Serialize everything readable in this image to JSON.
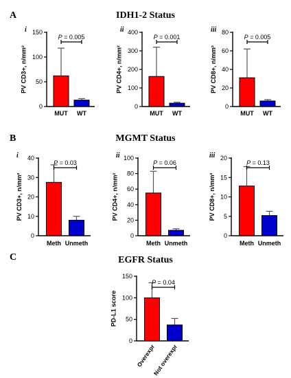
{
  "figure": {
    "sections": [
      {
        "letter": "A",
        "title": "IDH1-2 Status"
      },
      {
        "letter": "B",
        "title": "MGMT Status"
      },
      {
        "letter": "C",
        "title": "EGFR Status"
      }
    ]
  },
  "chart_data": [
    {
      "type": "bar",
      "section": "A",
      "panel_label": "i",
      "categories": [
        "MUT",
        "WT"
      ],
      "values": [
        62,
        13
      ],
      "errors": [
        56,
        3
      ],
      "ylabel": "PV CD3+, n/mm²",
      "ylim": [
        0,
        150
      ],
      "yticks": [
        0,
        50,
        100,
        150
      ],
      "bar_colors": [
        "#ff0000",
        "#0000cc"
      ],
      "pvalue": "P = 0.005"
    },
    {
      "type": "bar",
      "section": "A",
      "panel_label": "ii",
      "categories": [
        "MUT",
        "WT"
      ],
      "values": [
        162,
        18
      ],
      "errors": [
        158,
        5
      ],
      "ylabel": "PV CD4+, n/mm²",
      "ylim": [
        0,
        400
      ],
      "yticks": [
        0,
        100,
        200,
        300,
        400
      ],
      "bar_colors": [
        "#ff0000",
        "#0000cc"
      ],
      "pvalue": "P = 0.001"
    },
    {
      "type": "bar",
      "section": "A",
      "panel_label": "iii",
      "categories": [
        "MUT",
        "WT"
      ],
      "values": [
        31,
        6
      ],
      "errors": [
        31,
        1.5
      ],
      "ylabel": "PV CD8+, n/mm²",
      "ylim": [
        0,
        80
      ],
      "yticks": [
        0,
        20,
        40,
        60,
        80
      ],
      "bar_colors": [
        "#ff0000",
        "#0000cc"
      ],
      "pvalue": "P = 0.005"
    },
    {
      "type": "bar",
      "section": "B",
      "panel_label": "i",
      "categories": [
        "Meth",
        "Unmeth"
      ],
      "values": [
        27.5,
        8
      ],
      "errors": [
        9,
        2
      ],
      "ylabel": "PV CD3+, n/mm²",
      "ylim": [
        0,
        40
      ],
      "yticks": [
        0,
        10,
        20,
        30,
        40
      ],
      "bar_colors": [
        "#ff0000",
        "#0000cc"
      ],
      "pvalue": "P = 0.03"
    },
    {
      "type": "bar",
      "section": "B",
      "panel_label": "ii",
      "categories": [
        "Meth",
        "Unmeth"
      ],
      "values": [
        55,
        7
      ],
      "errors": [
        28,
        2
      ],
      "ylabel": "PV CD4+, n/mm²",
      "ylim": [
        0,
        100
      ],
      "yticks": [
        0,
        20,
        40,
        60,
        80,
        100
      ],
      "bar_colors": [
        "#ff0000",
        "#0000cc"
      ],
      "pvalue": "P = 0.06"
    },
    {
      "type": "bar",
      "section": "B",
      "panel_label": "iii",
      "categories": [
        "Meth",
        "Unmeth"
      ],
      "values": [
        12.8,
        5.2
      ],
      "errors": [
        5,
        1.1
      ],
      "ylabel": "PV CD8+, n/mm²",
      "ylim": [
        0,
        20
      ],
      "yticks": [
        0,
        5,
        10,
        15,
        20
      ],
      "bar_colors": [
        "#ff0000",
        "#0000cc"
      ],
      "pvalue": "P = 0.13"
    },
    {
      "type": "bar",
      "section": "C",
      "panel_label": "",
      "categories": [
        "Overexpr",
        "Not overexpr"
      ],
      "values": [
        100,
        37
      ],
      "errors": [
        35,
        15
      ],
      "ylabel": "PD-L1 score",
      "ylim": [
        0,
        150
      ],
      "yticks": [
        0,
        50,
        100,
        150
      ],
      "bar_colors": [
        "#ff0000",
        "#0000cc"
      ],
      "pvalue": "P = 0.04"
    }
  ]
}
